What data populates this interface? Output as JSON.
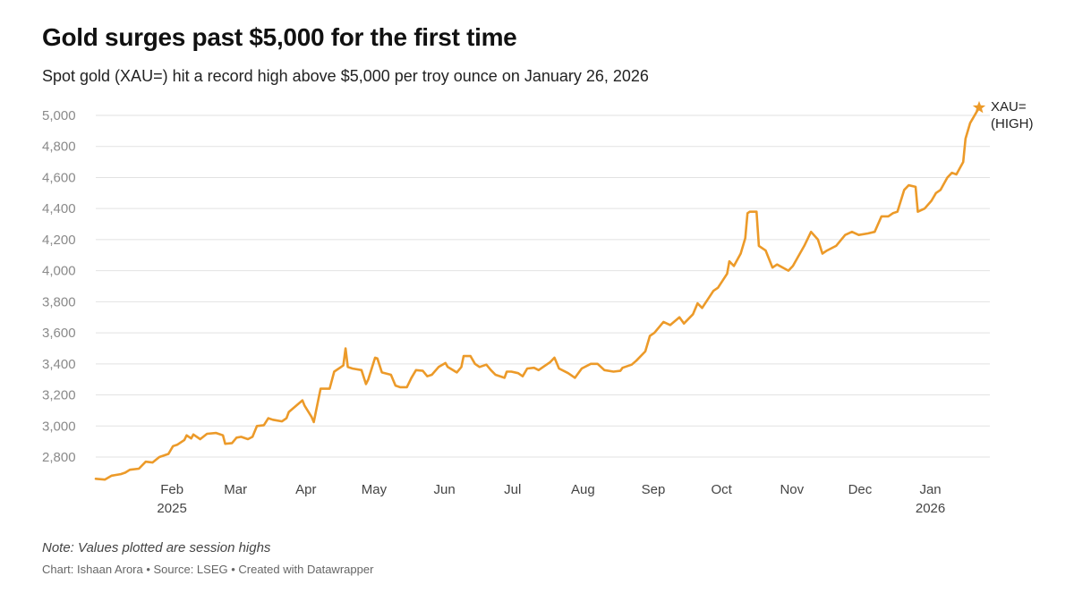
{
  "chart_data": {
    "type": "line",
    "title": "Gold surges past $5,000 for the first time",
    "subtitle": "Spot gold (XAU=) hit a record high above $5,000 per troy ounce on January 26, 2026",
    "ylim": [
      2640,
      5060
    ],
    "yticks": [
      2800,
      3000,
      3200,
      3400,
      3600,
      3800,
      4000,
      4200,
      4400,
      4600,
      4800,
      5000
    ],
    "ytick_labels": [
      "2,800",
      "3,000",
      "3,200",
      "3,400",
      "3,600",
      "3,800",
      "4,000",
      "4,200",
      "4,400",
      "4,600",
      "4,800",
      "5,000"
    ],
    "xlim": [
      "2025-01-02",
      "2026-01-26"
    ],
    "xticks": [
      {
        "date": "2025-02-01",
        "label": "Feb",
        "sublabel": "2025"
      },
      {
        "date": "2025-03-01",
        "label": "Mar",
        "sublabel": ""
      },
      {
        "date": "2025-04-01",
        "label": "Apr",
        "sublabel": ""
      },
      {
        "date": "2025-05-01",
        "label": "May",
        "sublabel": ""
      },
      {
        "date": "2025-06-01",
        "label": "Jun",
        "sublabel": ""
      },
      {
        "date": "2025-07-01",
        "label": "Jul",
        "sublabel": ""
      },
      {
        "date": "2025-08-01",
        "label": "Aug",
        "sublabel": ""
      },
      {
        "date": "2025-09-01",
        "label": "Sep",
        "sublabel": ""
      },
      {
        "date": "2025-10-01",
        "label": "Oct",
        "sublabel": ""
      },
      {
        "date": "2025-11-01",
        "label": "Nov",
        "sublabel": ""
      },
      {
        "date": "2025-12-01",
        "label": "Dec",
        "sublabel": ""
      },
      {
        "date": "2026-01-01",
        "label": "Jan",
        "sublabel": "2026"
      }
    ],
    "series": [
      {
        "name": "XAU= (HIGH)",
        "label_lines": [
          "XAU=",
          "(HIGH)"
        ],
        "color": "#ec9a29",
        "points": [
          [
            "2025-01-02",
            2660
          ],
          [
            "2025-01-06",
            2655
          ],
          [
            "2025-01-09",
            2680
          ],
          [
            "2025-01-13",
            2690
          ],
          [
            "2025-01-15",
            2700
          ],
          [
            "2025-01-17",
            2718
          ],
          [
            "2025-01-21",
            2725
          ],
          [
            "2025-01-24",
            2770
          ],
          [
            "2025-01-27",
            2765
          ],
          [
            "2025-01-30",
            2800
          ],
          [
            "2025-02-03",
            2820
          ],
          [
            "2025-02-05",
            2870
          ],
          [
            "2025-02-07",
            2880
          ],
          [
            "2025-02-10",
            2910
          ],
          [
            "2025-02-11",
            2940
          ],
          [
            "2025-02-13",
            2920
          ],
          [
            "2025-02-14",
            2945
          ],
          [
            "2025-02-17",
            2915
          ],
          [
            "2025-02-20",
            2950
          ],
          [
            "2025-02-24",
            2955
          ],
          [
            "2025-02-27",
            2940
          ],
          [
            "2025-02-28",
            2885
          ],
          [
            "2025-03-03",
            2890
          ],
          [
            "2025-03-05",
            2925
          ],
          [
            "2025-03-07",
            2930
          ],
          [
            "2025-03-10",
            2915
          ],
          [
            "2025-03-12",
            2930
          ],
          [
            "2025-03-14",
            3000
          ],
          [
            "2025-03-17",
            3005
          ],
          [
            "2025-03-19",
            3050
          ],
          [
            "2025-03-21",
            3040
          ],
          [
            "2025-03-25",
            3030
          ],
          [
            "2025-03-27",
            3050
          ],
          [
            "2025-03-28",
            3090
          ],
          [
            "2025-04-01",
            3140
          ],
          [
            "2025-04-03",
            3165
          ],
          [
            "2025-04-04",
            3130
          ],
          [
            "2025-04-07",
            3060
          ],
          [
            "2025-04-08",
            3025
          ],
          [
            "2025-04-10",
            3170
          ],
          [
            "2025-04-11",
            3240
          ],
          [
            "2025-04-15",
            3240
          ],
          [
            "2025-04-17",
            3350
          ],
          [
            "2025-04-21",
            3390
          ],
          [
            "2025-04-22",
            3500
          ],
          [
            "2025-04-23",
            3380
          ],
          [
            "2025-04-25",
            3370
          ],
          [
            "2025-04-29",
            3360
          ],
          [
            "2025-05-01",
            3270
          ],
          [
            "2025-05-02",
            3300
          ],
          [
            "2025-05-05",
            3440
          ],
          [
            "2025-05-06",
            3435
          ],
          [
            "2025-05-08",
            3345
          ],
          [
            "2025-05-12",
            3330
          ],
          [
            "2025-05-14",
            3260
          ],
          [
            "2025-05-16",
            3250
          ],
          [
            "2025-05-19",
            3250
          ],
          [
            "2025-05-21",
            3310
          ],
          [
            "2025-05-23",
            3360
          ],
          [
            "2025-05-26",
            3355
          ],
          [
            "2025-05-28",
            3320
          ],
          [
            "2025-05-30",
            3330
          ],
          [
            "2025-06-02",
            3380
          ],
          [
            "2025-06-05",
            3405
          ],
          [
            "2025-06-06",
            3380
          ],
          [
            "2025-06-10",
            3345
          ],
          [
            "2025-06-12",
            3380
          ],
          [
            "2025-06-13",
            3450
          ],
          [
            "2025-06-16",
            3450
          ],
          [
            "2025-06-18",
            3400
          ],
          [
            "2025-06-20",
            3380
          ],
          [
            "2025-06-23",
            3395
          ],
          [
            "2025-06-25",
            3360
          ],
          [
            "2025-06-27",
            3330
          ],
          [
            "2025-07-01",
            3310
          ],
          [
            "2025-07-02",
            3350
          ],
          [
            "2025-07-04",
            3350
          ],
          [
            "2025-07-07",
            3340
          ],
          [
            "2025-07-09",
            3320
          ],
          [
            "2025-07-11",
            3370
          ],
          [
            "2025-07-14",
            3375
          ],
          [
            "2025-07-16",
            3360
          ],
          [
            "2025-07-18",
            3380
          ],
          [
            "2025-07-21",
            3410
          ],
          [
            "2025-07-23",
            3440
          ],
          [
            "2025-07-25",
            3370
          ],
          [
            "2025-07-29",
            3340
          ],
          [
            "2025-08-01",
            3310
          ],
          [
            "2025-08-04",
            3370
          ],
          [
            "2025-08-08",
            3400
          ],
          [
            "2025-08-11",
            3400
          ],
          [
            "2025-08-14",
            3360
          ],
          [
            "2025-08-18",
            3350
          ],
          [
            "2025-08-21",
            3355
          ],
          [
            "2025-08-22",
            3375
          ],
          [
            "2025-08-26",
            3395
          ],
          [
            "2025-08-28",
            3420
          ],
          [
            "2025-09-01",
            3480
          ],
          [
            "2025-09-03",
            3580
          ],
          [
            "2025-09-05",
            3600
          ],
          [
            "2025-09-09",
            3670
          ],
          [
            "2025-09-12",
            3650
          ],
          [
            "2025-09-16",
            3700
          ],
          [
            "2025-09-18",
            3660
          ],
          [
            "2025-09-22",
            3720
          ],
          [
            "2025-09-24",
            3790
          ],
          [
            "2025-09-26",
            3760
          ],
          [
            "2025-10-01",
            3870
          ],
          [
            "2025-10-03",
            3890
          ],
          [
            "2025-10-07",
            3980
          ],
          [
            "2025-10-08",
            4060
          ],
          [
            "2025-10-10",
            4030
          ],
          [
            "2025-10-13",
            4110
          ],
          [
            "2025-10-15",
            4210
          ],
          [
            "2025-10-16",
            4370
          ],
          [
            "2025-10-17",
            4380
          ],
          [
            "2025-10-20",
            4380
          ],
          [
            "2025-10-21",
            4160
          ],
          [
            "2025-10-24",
            4130
          ],
          [
            "2025-10-27",
            4020
          ],
          [
            "2025-10-29",
            4040
          ],
          [
            "2025-11-03",
            4000
          ],
          [
            "2025-11-05",
            4030
          ],
          [
            "2025-11-10",
            4160
          ],
          [
            "2025-11-13",
            4250
          ],
          [
            "2025-11-16",
            4200
          ],
          [
            "2025-11-18",
            4110
          ],
          [
            "2025-11-20",
            4130
          ],
          [
            "2025-11-24",
            4160
          ],
          [
            "2025-11-28",
            4230
          ],
          [
            "2025-12-01",
            4250
          ],
          [
            "2025-12-04",
            4230
          ],
          [
            "2025-12-08",
            4240
          ],
          [
            "2025-12-11",
            4250
          ],
          [
            "2025-12-14",
            4350
          ],
          [
            "2025-12-17",
            4350
          ],
          [
            "2025-12-19",
            4370
          ],
          [
            "2025-12-21",
            4380
          ],
          [
            "2025-12-24",
            4520
          ],
          [
            "2025-12-26",
            4550
          ],
          [
            "2025-12-29",
            4540
          ],
          [
            "2025-12-30",
            4380
          ],
          [
            "2026-01-02",
            4400
          ],
          [
            "2026-01-05",
            4450
          ],
          [
            "2026-01-07",
            4500
          ],
          [
            "2026-01-09",
            4520
          ],
          [
            "2026-01-12",
            4600
          ],
          [
            "2026-01-14",
            4630
          ],
          [
            "2026-01-16",
            4620
          ],
          [
            "2026-01-19",
            4700
          ],
          [
            "2026-01-20",
            4850
          ],
          [
            "2026-01-22",
            4950
          ],
          [
            "2026-01-26",
            5050
          ]
        ]
      }
    ]
  },
  "footer": {
    "note": "Note: Values plotted are session highs",
    "credits": "Chart: Ishaan Arora • Source: LSEG • Created with Datawrapper"
  },
  "colors": {
    "line": "#ec9a29",
    "grid": "#e2e2e2",
    "tick_text": "#8a8a8a"
  }
}
